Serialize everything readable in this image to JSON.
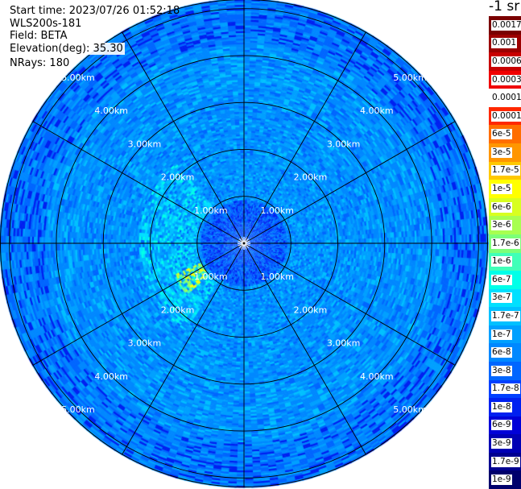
{
  "info": {
    "start_time": "Start time: 2023/07/26 01:52:18",
    "instrument": "WLS200s-181",
    "field": "Field: BETA",
    "elevation": "Elevation(deg): 35.30",
    "nrays": "NRays: 180"
  },
  "colorbar": {
    "unit_label": "-1 sr",
    "labels": [
      "0.0017",
      "0.001",
      "0.0006",
      "0.0003",
      "0.00017",
      "0.0001",
      "6e-5",
      "3e-5",
      "1.7e-5",
      "1e-5",
      "6e-6",
      "3e-6",
      "1.7e-6",
      "1e-6",
      "6e-7",
      "3e-7",
      "1.7e-7",
      "1e-7",
      "6e-8",
      "3e-8",
      "1.7e-8",
      "1e-8",
      "6e-9",
      "3e-9",
      "1.7e-9",
      "1e-9"
    ],
    "colors": [
      "#7a0000",
      "#9c0000",
      "#c80000",
      "#f00000",
      "#ffffff",
      "#ff2800",
      "#ff6e00",
      "#ff9600",
      "#ffc800",
      "#ffff00",
      "#d8ff20",
      "#a8ff50",
      "#7cff78",
      "#40ffb8",
      "#00ffe8",
      "#00e0ff",
      "#00c0ff",
      "#00a0ff",
      "#0088ff",
      "#0066ff",
      "#0040ff",
      "#0020f0",
      "#0000d8",
      "#0000b4",
      "#000090",
      "#00006c"
    ]
  },
  "chart_data": {
    "type": "heatmap",
    "title": "",
    "projection": "polar (PPI scan)",
    "field": "BETA",
    "elevation_deg": 35.3,
    "n_rays": 180,
    "range_rings_km": [
      1,
      2,
      3,
      4,
      5
    ],
    "ring_labels": [
      "1.00km",
      "2.00km",
      "3.00km",
      "4.00km",
      "5.00km"
    ],
    "max_range_km": 5.2,
    "spokes_deg": [
      0,
      30,
      60,
      90,
      120,
      150,
      180,
      210,
      240,
      270,
      300,
      330
    ],
    "background_level": "3e-8 to 1e-7",
    "features": [
      {
        "desc": "enhanced backscatter arc",
        "azimuth_deg": [
          215,
          320
        ],
        "range_km": [
          1.0,
          2.2
        ],
        "level": "1.7e-7 to 1e-6"
      },
      {
        "desc": "strong patch",
        "azimuth_deg": [
          228,
          245
        ],
        "range_km": [
          1.0,
          1.6
        ],
        "level": "3e-6 to 1e-5"
      },
      {
        "desc": "near-range low values",
        "azimuth_deg": [
          0,
          360
        ],
        "range_km": [
          0,
          0.9
        ],
        "level": "1.7e-8 to 6e-8"
      }
    ]
  }
}
